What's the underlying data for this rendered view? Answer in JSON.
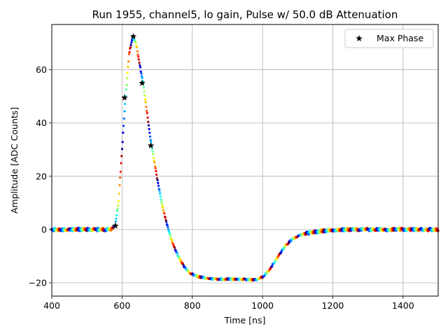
{
  "chart_data": {
    "type": "scatter",
    "title": "Run 1955, channel5, lo gain, Pulse w/ 50.0 dB Attenuation",
    "xlabel": "Time [ns]",
    "ylabel": "Amplitude [ADC Counts]",
    "xlim": [
      400,
      1500
    ],
    "ylim": [
      -25,
      77
    ],
    "xticks": [
      400,
      600,
      800,
      1000,
      1200,
      1400
    ],
    "yticks": [
      -20,
      0,
      20,
      40,
      60
    ],
    "grid": true,
    "legend": {
      "position": "top-right",
      "entries": [
        "Max Phase"
      ]
    },
    "colormap": "jet",
    "pulse_curve": {
      "x": [
        400,
        560,
        570,
        580,
        590,
        600,
        610,
        620,
        630,
        640,
        650,
        660,
        670,
        680,
        690,
        700,
        710,
        720,
        730,
        740,
        750,
        760,
        770,
        780,
        790,
        800,
        820,
        840,
        860,
        880,
        900,
        920,
        940,
        960,
        980,
        990,
        1000,
        1010,
        1020,
        1030,
        1040,
        1050,
        1060,
        1070,
        1080,
        1090,
        1100,
        1120,
        1140,
        1160,
        1180,
        1200,
        1250,
        1300,
        1400,
        1500
      ],
      "y": [
        0,
        0,
        0.3,
        1.5,
        10,
        30,
        50,
        66,
        72.5,
        70,
        62,
        55,
        45,
        35,
        27,
        19,
        12,
        6,
        1,
        -3.5,
        -7,
        -10,
        -12.5,
        -14.5,
        -15.8,
        -16.8,
        -17.8,
        -18.3,
        -18.5,
        -18.6,
        -18.6,
        -18.6,
        -18.7,
        -18.8,
        -18.9,
        -18.5,
        -17.8,
        -16.5,
        -15,
        -13,
        -11,
        -9,
        -7,
        -5.5,
        -4.2,
        -3.3,
        -2.5,
        -1.6,
        -1.1,
        -0.7,
        -0.4,
        -0.2,
        0,
        0,
        0,
        0
      ]
    },
    "max_phase_points": {
      "x": [
        581,
        607,
        632,
        657,
        682
      ],
      "y": [
        1.4,
        49.5,
        72.5,
        55,
        31.5
      ]
    }
  }
}
